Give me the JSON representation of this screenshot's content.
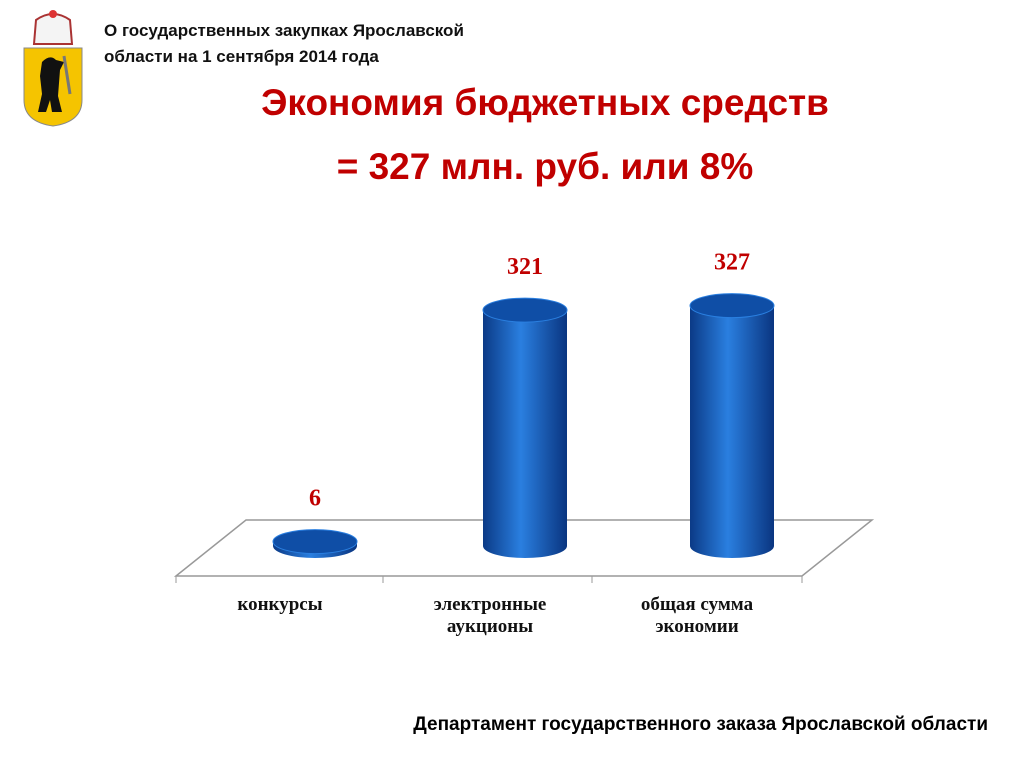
{
  "header": {
    "text": "О государственных закупках Ярославской области на 1 сентября 2014 года"
  },
  "chart_data": {
    "type": "bar",
    "title": "Экономия бюджетных средств",
    "subtitle": "= 327 млн. руб. или 8%",
    "categories": [
      "конкурсы",
      "электронные аукционы",
      "общая сумма экономии"
    ],
    "values": [
      6,
      321,
      327
    ],
    "color": "#1565c8",
    "label_color": "#c00000"
  },
  "footer": {
    "text": "Департамент государственного заказа Ярославской области"
  }
}
